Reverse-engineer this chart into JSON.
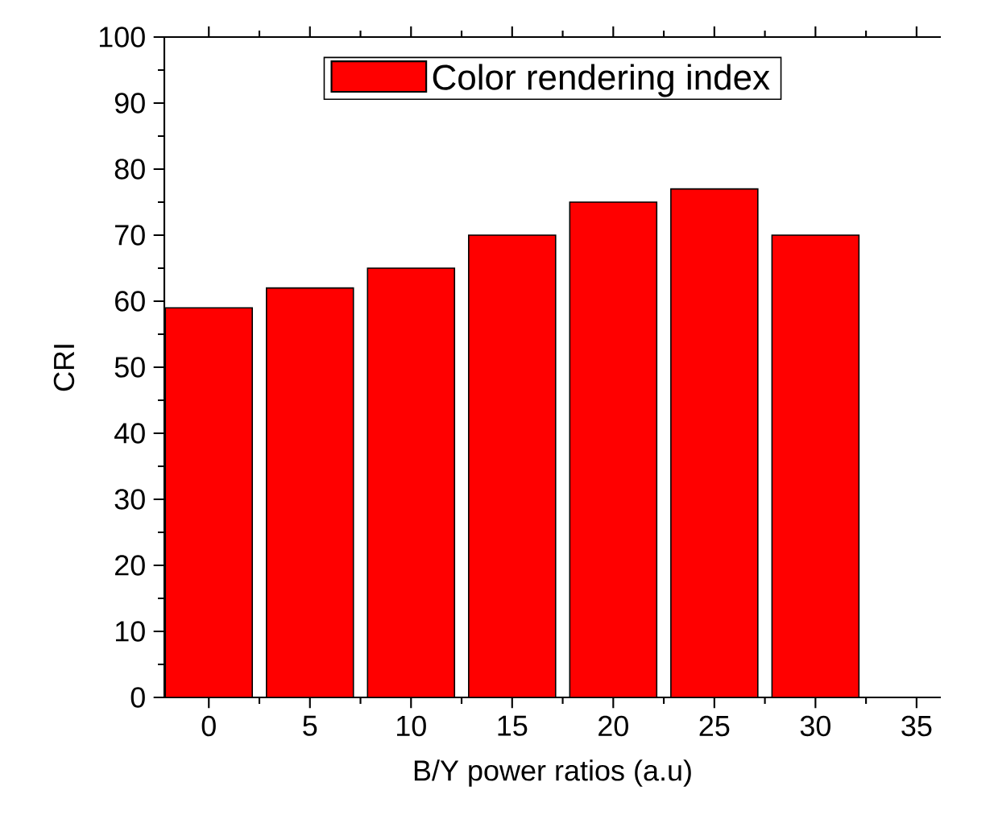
{
  "chart_data": {
    "type": "bar",
    "xlabel": "B/Y power ratios (a.u)",
    "ylabel": "CRI",
    "x": [
      0,
      5,
      10,
      15,
      20,
      25,
      30
    ],
    "series": [
      {
        "name": "Color rendering index",
        "color": "#ff0000",
        "values": [
          59,
          62,
          65,
          70,
          75,
          77,
          70
        ]
      }
    ],
    "xlim": [
      -2.2,
      36.2
    ],
    "xticks": [
      0,
      5,
      10,
      15,
      20,
      25,
      30,
      35
    ],
    "ylim": [
      0,
      100
    ],
    "yticks": [
      0,
      10,
      20,
      30,
      40,
      50,
      60,
      70,
      80,
      90,
      100
    ],
    "legend": "top",
    "grid": false
  }
}
